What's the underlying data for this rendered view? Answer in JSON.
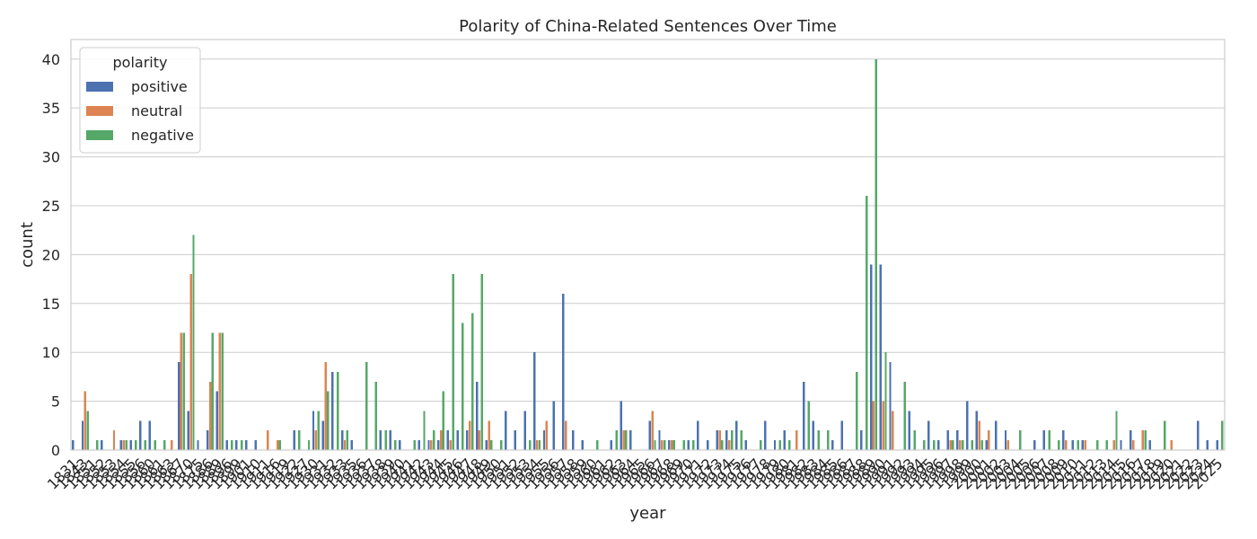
{
  "chart_data": {
    "type": "bar",
    "title": "Polarity of China-Related Sentences Over Time",
    "xlabel": "year",
    "ylabel": "count",
    "ylim": [
      0,
      42
    ],
    "yticks": [
      0,
      5,
      10,
      15,
      20,
      25,
      30,
      35,
      40
    ],
    "grid": "horizontal",
    "legend": {
      "title": "polarity",
      "placement": "top-left"
    },
    "categories": [
      "1831",
      "1843",
      "1851",
      "1852",
      "1853",
      "1854",
      "1855",
      "1856",
      "1860",
      "1861",
      "1863",
      "1867",
      "1870",
      "1875",
      "1886",
      "1889",
      "1896",
      "1899",
      "1901",
      "1910",
      "1911",
      "1916",
      "1919",
      "1922",
      "1927",
      "1930",
      "1931",
      "1932",
      "1933",
      "1935",
      "1936",
      "1937",
      "1938",
      "1939",
      "1940",
      "1941",
      "1942",
      "1943",
      "1944",
      "1945",
      "1946",
      "1947",
      "1948",
      "1949",
      "1950",
      "1951",
      "1952",
      "1953",
      "1954",
      "1955",
      "1956",
      "1957",
      "1958",
      "1959",
      "1960",
      "1961",
      "1962",
      "1963",
      "1964",
      "1965",
      "1966",
      "1967",
      "1968",
      "1969",
      "1970",
      "1971",
      "1972",
      "1973",
      "1974",
      "1975",
      "1976",
      "1977",
      "1978",
      "1979",
      "1980",
      "1981",
      "1982",
      "1983",
      "1984",
      "1985",
      "1986",
      "1987",
      "1988",
      "1989",
      "1990",
      "1991",
      "1992",
      "1993",
      "1994",
      "1995",
      "1996",
      "1997",
      "1998",
      "1999",
      "2000",
      "2001",
      "2002",
      "2003",
      "2004",
      "2005",
      "2006",
      "2007",
      "2008",
      "2009",
      "2010",
      "2011",
      "2012",
      "2013",
      "2014",
      "2015",
      "2016",
      "2017",
      "2018",
      "2019",
      "2020",
      "2021",
      "2022",
      "2023",
      "2024",
      "2025"
    ],
    "tick_labels": [
      "1831",
      "1843",
      "1851",
      "1852",
      "1853",
      "1854",
      "1855",
      "1856",
      "1860",
      "1861",
      "1863",
      "1867",
      "1870",
      "1875",
      "1886",
      "1889",
      "1896",
      "1899",
      "1901",
      "1910",
      "1911",
      "1916",
      "1919",
      "1922",
      "1927",
      "1930",
      "1931",
      "1932",
      "1933",
      "1935",
      "1936",
      "1937",
      "1938",
      "1939",
      "1940",
      "1941",
      "1942",
      "1943",
      "1944",
      "1945",
      "1946",
      "1947",
      "1948",
      "1949",
      "1950",
      "1951",
      "1952",
      "1953",
      "1954",
      "1955",
      "1956",
      "1957",
      "1958",
      "1959",
      "1960",
      "1961",
      "1962",
      "1963",
      "1964",
      "1965",
      "1966",
      "1967",
      "1968",
      "1969",
      "1970",
      "1971",
      "1972",
      "1973",
      "1974",
      "1975",
      "1976",
      "1977",
      "1978",
      "1979",
      "1980",
      "1981",
      "1982",
      "1983",
      "1984",
      "1985",
      "1986",
      "1987",
      "1988",
      "1989",
      "1990",
      "1991",
      "1992",
      "1993",
      "1994",
      "1995",
      "1996",
      "1997",
      "1998",
      "1999",
      "2000",
      "2001",
      "2002",
      "2003",
      "2004",
      "2005",
      "2006",
      "2007",
      "2008",
      "2009",
      "2010",
      "2011",
      "2012",
      "2013",
      "2014",
      "2015",
      "2016",
      "2017",
      "2018",
      "2019",
      "2020",
      "2021",
      "2022",
      "2023",
      "2024",
      "2025"
    ],
    "series": [
      {
        "name": "positive",
        "color": "#4c72b0",
        "values": [
          1,
          3,
          0,
          1,
          0,
          1,
          1,
          3,
          3,
          0,
          0,
          9,
          4,
          1,
          2,
          6,
          1,
          1,
          1,
          1,
          0,
          0,
          0,
          2,
          0,
          4,
          3,
          8,
          2,
          1,
          0,
          0,
          2,
          2,
          1,
          0,
          1,
          1,
          1,
          2,
          2,
          2,
          7,
          1,
          0,
          4,
          2,
          4,
          10,
          2,
          5,
          16,
          2,
          1,
          0,
          0,
          1,
          5,
          2,
          0,
          3,
          2,
          1,
          0,
          1,
          3,
          1,
          2,
          2,
          3,
          1,
          0,
          3,
          1,
          2,
          0,
          7,
          3,
          0,
          1,
          3,
          0,
          2,
          19,
          19,
          9,
          0,
          4,
          0,
          3,
          1,
          2,
          2,
          5,
          4,
          1,
          3,
          2,
          0,
          0,
          1,
          2,
          0,
          2,
          1,
          1,
          0,
          0,
          0,
          1,
          2,
          0,
          1,
          0,
          0,
          0,
          0,
          3,
          1,
          1
        ]
      },
      {
        "name": "neutral",
        "color": "#dd8452",
        "values": [
          0,
          6,
          0,
          0,
          2,
          1,
          0,
          0,
          0,
          0,
          1,
          12,
          18,
          0,
          7,
          12,
          0,
          0,
          0,
          0,
          2,
          1,
          0,
          0,
          0,
          2,
          9,
          0,
          1,
          0,
          0,
          0,
          0,
          0,
          0,
          0,
          0,
          1,
          2,
          1,
          0,
          3,
          2,
          3,
          0,
          0,
          0,
          0,
          1,
          3,
          0,
          3,
          0,
          0,
          0,
          0,
          0,
          2,
          0,
          0,
          4,
          1,
          1,
          0,
          0,
          0,
          0,
          2,
          1,
          0,
          0,
          0,
          0,
          0,
          0,
          2,
          0,
          0,
          0,
          0,
          0,
          0,
          0,
          5,
          5,
          4,
          0,
          0,
          0,
          0,
          0,
          1,
          1,
          0,
          3,
          2,
          0,
          1,
          0,
          0,
          0,
          0,
          0,
          1,
          0,
          1,
          0,
          0,
          1,
          0,
          1,
          2,
          0,
          0,
          1,
          0,
          0,
          0,
          0,
          0
        ]
      },
      {
        "name": "negative",
        "color": "#55a868",
        "values": [
          0,
          4,
          1,
          0,
          0,
          1,
          1,
          1,
          1,
          1,
          0,
          12,
          22,
          0,
          12,
          12,
          1,
          1,
          0,
          0,
          0,
          1,
          0,
          2,
          1,
          4,
          6,
          8,
          2,
          0,
          9,
          7,
          2,
          1,
          0,
          1,
          4,
          2,
          6,
          18,
          13,
          14,
          18,
          1,
          1,
          0,
          0,
          1,
          1,
          0,
          0,
          0,
          0,
          0,
          1,
          0,
          2,
          2,
          0,
          0,
          1,
          1,
          1,
          1,
          1,
          0,
          0,
          1,
          2,
          2,
          0,
          1,
          0,
          1,
          1,
          0,
          5,
          2,
          2,
          0,
          0,
          8,
          26,
          40,
          10,
          0,
          7,
          2,
          1,
          1,
          0,
          1,
          1,
          1,
          1,
          0,
          0,
          0,
          2,
          0,
          0,
          2,
          1,
          0,
          1,
          0,
          1,
          1,
          4,
          0,
          0,
          2,
          0,
          3,
          0,
          0,
          0,
          0,
          0,
          3
        ]
      }
    ]
  }
}
